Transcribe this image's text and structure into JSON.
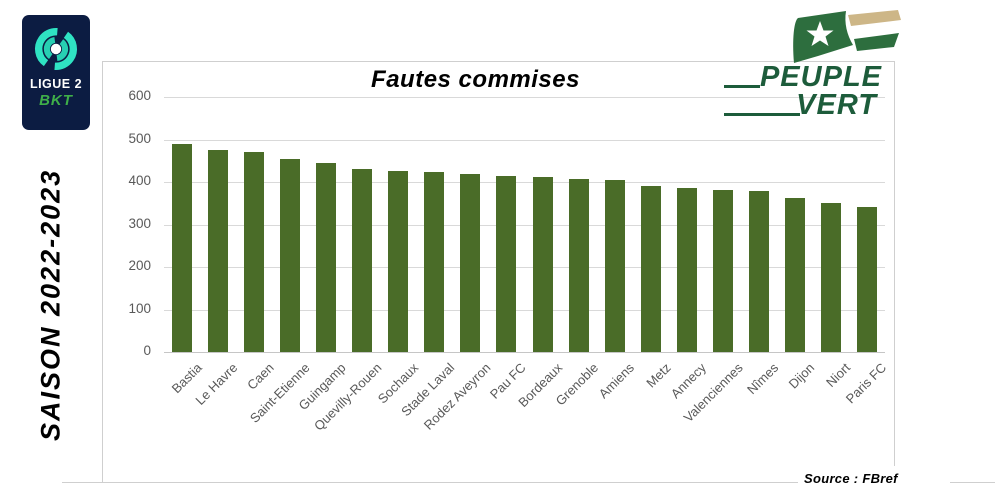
{
  "left_panel": {
    "ligue2_logo": {
      "line1": "LIGUE 2",
      "line2": "BKT"
    },
    "season_label": "SAISON 2022-2023"
  },
  "header": {
    "peuple_vert": {
      "line1": "PEUPLE",
      "line2": "VERT"
    }
  },
  "colors": {
    "bar": "#4a6c28",
    "navy": "#0c1c42",
    "turquoise": "#2fe3c3",
    "bkt_green": "#3fae49",
    "pv_green": "#1d5c3b",
    "flag_green": "#2d6e3e",
    "flag_tan": "#cdb687",
    "grid": "#d9d9d9",
    "axis_text": "#595959"
  },
  "chart_data": {
    "type": "bar",
    "title": "Fautes commises",
    "categories": [
      "Bastia",
      "Le Havre",
      "Caen",
      "Saint-Etienne",
      "Guingamp",
      "Quevilly-Rouen",
      "Sochaux",
      "Stade Laval",
      "Rodez Aveyron",
      "Pau FC",
      "Bordeaux",
      "Grenoble",
      "Amiens",
      "Metz",
      "Annecy",
      "Valenciennes",
      "Nîmes",
      "Dijon",
      "Niort",
      "Paris FC"
    ],
    "values": [
      490,
      476,
      470,
      455,
      444,
      430,
      427,
      424,
      418,
      415,
      411,
      408,
      405,
      390,
      387,
      382,
      378,
      363,
      350,
      341
    ],
    "ylim": [
      0,
      600
    ],
    "ytick_step": 100,
    "grid": true,
    "legend": false,
    "xlabel": "",
    "ylabel": "",
    "source": "Source : FBref"
  }
}
